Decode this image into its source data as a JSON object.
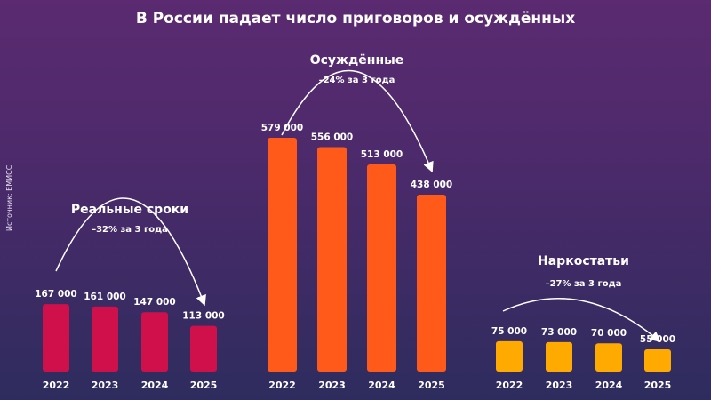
{
  "title": "В России падает число приговоров и осуждённых",
  "source": "Источник: ЕМИСС",
  "chart_data": [
    {
      "type": "bar",
      "title": "Реальные сроки",
      "subtitle": "–32% за 3 года",
      "categories": [
        "2022",
        "2023",
        "2024",
        "2025"
      ],
      "values": [
        167000,
        161000,
        147000,
        113000
      ],
      "labels": [
        "167 000",
        "161 000",
        "147 000",
        "113 000"
      ],
      "color": "#d0104a"
    },
    {
      "type": "bar",
      "title": "Осуждённые",
      "subtitle": "–24% за 3 года",
      "categories": [
        "2022",
        "2023",
        "2024",
        "2025"
      ],
      "values": [
        579000,
        556000,
        513000,
        438000
      ],
      "labels": [
        "579 000",
        "556 000",
        "513 000",
        "438 000"
      ],
      "color": "#ff5a1a"
    },
    {
      "type": "bar",
      "title": "Наркостатьи",
      "subtitle": "–27% за 3 года",
      "categories": [
        "2022",
        "2023",
        "2024",
        "2025"
      ],
      "values": [
        75000,
        73000,
        70000,
        55000
      ],
      "labels": [
        "75 000",
        "73 000",
        "70 000",
        "55 000"
      ],
      "color": "#ffaa00"
    }
  ]
}
